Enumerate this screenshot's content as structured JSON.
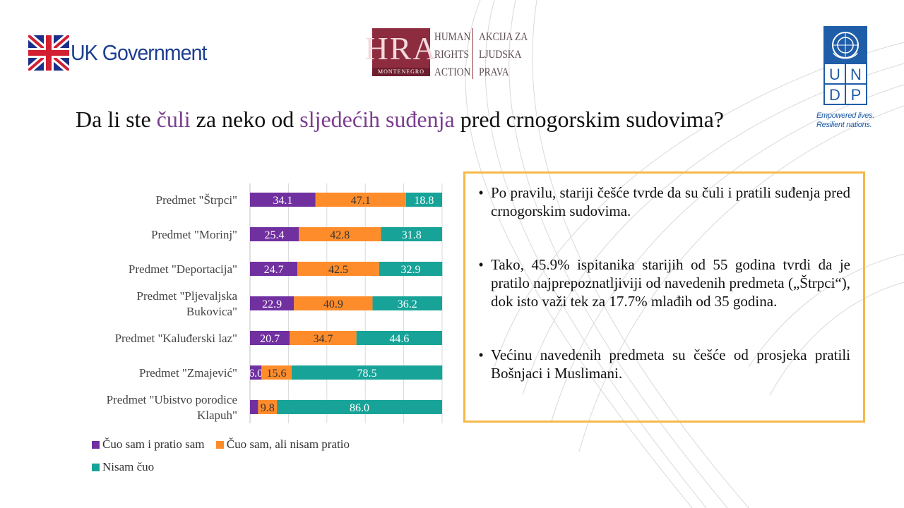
{
  "header": {
    "uk_gov_label": "UK Government",
    "hra": {
      "letters": "HRA",
      "sub": "MONTENEGRO",
      "col1": [
        "HUMAN",
        "RIGHTS",
        "ACTION"
      ],
      "col2": [
        "AKCIJA ZA",
        "LJUDSKA",
        "PRAVA"
      ]
    },
    "undp": {
      "letters": [
        "U",
        "N",
        "D",
        "P"
      ],
      "tagline_1": "Empowered lives.",
      "tagline_2": "Resilient nations."
    }
  },
  "title": {
    "part1": "Da li ste ",
    "hl1": "čuli",
    "part2": " za neko od ",
    "hl2": "sljedećih suđenja",
    "part3": " pred crnogorskim sudovima?"
  },
  "colors": {
    "series1": "#7030a0",
    "series2": "#ff8c2a",
    "series3": "#17a398",
    "accent_title": "#7a3d8f",
    "box_border": "#f5b94a"
  },
  "chart_data": {
    "type": "bar",
    "orientation": "horizontal",
    "stacked": "100%",
    "categories": [
      [
        "Predmet \"Štrpci\""
      ],
      [
        "Predmet \"Morinj\""
      ],
      [
        "Predmet \"Deportacija\""
      ],
      [
        "Predmet \"Pljevaljska",
        "Bukovica\""
      ],
      [
        "Predmet \"Kaluđerski laz\""
      ],
      [
        "Predmet \"Zmajević\""
      ],
      [
        "Predmet \"Ubistvo porodice",
        "Klapuh\""
      ]
    ],
    "series": [
      {
        "name": "Čuo sam i pratio sam",
        "values": [
          34.1,
          25.4,
          24.7,
          22.9,
          20.7,
          6.0,
          4.2
        ],
        "labels": [
          "34.1",
          "25.4",
          "24.7",
          "22.9",
          "20.7",
          "6.0",
          ""
        ]
      },
      {
        "name": "Čuo sam, ali nisam pratio",
        "values": [
          47.1,
          42.8,
          42.5,
          40.9,
          34.7,
          15.6,
          9.8
        ],
        "labels": [
          "47.1",
          "42.8",
          "42.5",
          "40.9",
          "34.7",
          "15.6",
          "9.8"
        ]
      },
      {
        "name": "Nisam čuo",
        "values": [
          18.8,
          31.8,
          32.9,
          36.2,
          44.6,
          78.5,
          86.0
        ],
        "labels": [
          "18.8",
          "31.8",
          "32.9",
          "36.2",
          "44.6",
          "78.5",
          "86.0"
        ]
      }
    ],
    "xlim": [
      0,
      100
    ],
    "grid": true,
    "legend_position": "bottom"
  },
  "bullets": [
    "Po pravilu, stariji češće tvrde da su čuli i pratili suđenja pred crnogorskim sudovima.",
    "Tako, 45.9% ispitanika starijih od 55 godina tvrdi da je pratilo najprepoznatljiviji od navedenih predmeta („Štrpci“), dok isto važi tek za 17.7% mlađih od 35 godina.",
    "Većinu navedenih predmeta su češće od prosjeka pratili Bošnjaci i Muslimani."
  ]
}
